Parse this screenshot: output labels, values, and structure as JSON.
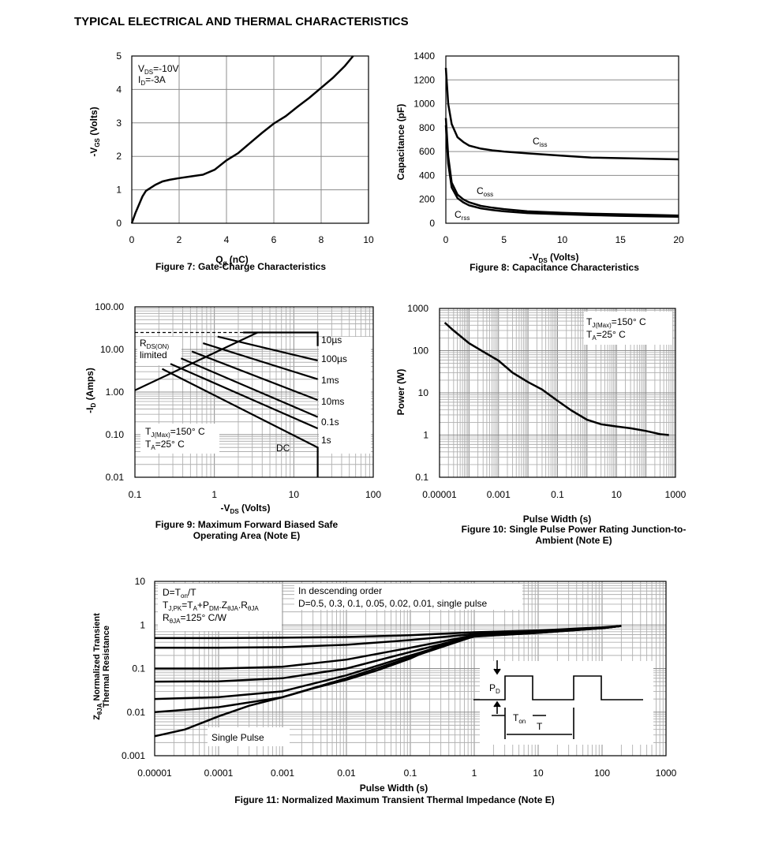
{
  "page": {
    "title": "TYPICAL ELECTRICAL AND THERMAL CHARACTERISTICS"
  },
  "chart_data": [
    {
      "id": "fig7",
      "type": "line",
      "title": "Figure 7: Gate-Charge Characteristics",
      "xlabel": "Q_g (nC)",
      "ylabel": "-V_GS (Volts)",
      "xlim": [
        0,
        10
      ],
      "ylim": [
        0,
        5
      ],
      "xticks": [
        0,
        2,
        4,
        6,
        8,
        10
      ],
      "yticks": [
        0,
        1,
        2,
        3,
        4,
        5
      ],
      "grid": true,
      "annotations": [
        "V_DS=-10V",
        "I_D=-3A"
      ],
      "series": [
        {
          "x": [
            0,
            0.15,
            0.3,
            0.45,
            0.6,
            0.8,
            1.0,
            1.3,
            1.6,
            2.0,
            2.5,
            3.0,
            3.5,
            4.0,
            4.5,
            5.0,
            5.5,
            6.0,
            6.5,
            7.0,
            7.5,
            8.0,
            8.5,
            9.0,
            9.35
          ],
          "y": [
            0,
            0.3,
            0.55,
            0.8,
            0.97,
            1.06,
            1.15,
            1.25,
            1.3,
            1.35,
            1.4,
            1.45,
            1.6,
            1.88,
            2.1,
            2.4,
            2.7,
            2.98,
            3.2,
            3.48,
            3.75,
            4.05,
            4.35,
            4.7,
            5.0
          ]
        }
      ]
    },
    {
      "id": "fig8",
      "type": "line",
      "title": "Figure 8: Capacitance Characteristics",
      "xlabel": "-V_DS (Volts)",
      "ylabel": "Capacitance (pF)",
      "xlim": [
        0,
        20
      ],
      "ylim": [
        0,
        1400
      ],
      "xticks": [
        0,
        5,
        10,
        15,
        20
      ],
      "yticks": [
        0,
        200,
        400,
        600,
        800,
        1000,
        1200,
        1400
      ],
      "grid": true,
      "series": [
        {
          "name": "C_iss",
          "x": [
            0,
            0.2,
            0.5,
            1,
            1.5,
            2,
            3,
            4,
            5,
            7,
            10,
            12.5,
            15,
            17.5,
            20
          ],
          "y": [
            1300,
            1000,
            830,
            720,
            680,
            650,
            625,
            610,
            600,
            585,
            565,
            550,
            545,
            540,
            535
          ]
        },
        {
          "name": "C_oss",
          "x": [
            0,
            0.2,
            0.5,
            1,
            1.5,
            2,
            3,
            4,
            5,
            7,
            10,
            12.5,
            15,
            17.5,
            20
          ],
          "y": [
            880,
            560,
            340,
            240,
            200,
            175,
            145,
            130,
            118,
            100,
            88,
            80,
            75,
            70,
            65
          ]
        },
        {
          "name": "C_rss",
          "x": [
            0,
            0.2,
            0.5,
            1,
            1.5,
            2,
            3,
            4,
            5,
            7,
            10,
            12.5,
            15,
            17.5,
            20
          ],
          "y": [
            820,
            500,
            300,
            210,
            175,
            150,
            125,
            110,
            100,
            85,
            75,
            68,
            62,
            58,
            55
          ]
        }
      ]
    },
    {
      "id": "fig9",
      "type": "line",
      "title": "Figure 9: Maximum Forward Biased Safe Operating Area (Note E)",
      "xlabel": "-V_DS (Volts)",
      "ylabel": "-I_D (Amps)",
      "xscale": "log",
      "yscale": "log",
      "xlim": [
        0.1,
        100
      ],
      "ylim": [
        0.01,
        100
      ],
      "xtick_labels": [
        "0.1",
        "1",
        "10",
        "100"
      ],
      "ytick_labels": [
        "0.01",
        "0.10",
        "1.00",
        "10.00",
        "100.00"
      ],
      "grid": true,
      "annotations": [
        "R_DS(ON) limited",
        "T_J(Max)=150° C",
        "T_A=25° C",
        "DC"
      ],
      "series": [
        {
          "name": "R_DS(ON) limited",
          "x": [
            0.1,
            3.5
          ],
          "y": [
            1.1,
            25
          ]
        },
        {
          "name": "10µs",
          "x": [
            2.3,
            20,
            20
          ],
          "y": [
            25,
            25,
            12
          ]
        },
        {
          "name": "100µs",
          "x": [
            1.1,
            20
          ],
          "y": [
            20,
            5.5
          ]
        },
        {
          "name": "1ms",
          "x": [
            0.72,
            20
          ],
          "y": [
            14,
            2
          ]
        },
        {
          "name": "10ms",
          "x": [
            0.52,
            20
          ],
          "y": [
            9,
            0.65
          ]
        },
        {
          "name": "0.1s",
          "x": [
            0.38,
            20
          ],
          "y": [
            6.2,
            0.26
          ]
        },
        {
          "name": "1s",
          "x": [
            0.28,
            20
          ],
          "y": [
            4.6,
            0.14
          ]
        },
        {
          "name": "DC",
          "x": [
            0.22,
            20,
            20
          ],
          "y": [
            3.5,
            0.05,
            0.01
          ]
        }
      ]
    },
    {
      "id": "fig10",
      "type": "line",
      "title": "Figure 10: Single Pulse Power Rating Junction-to-Ambient (Note E)",
      "xlabel": "Pulse Width (s)",
      "ylabel": "Power (W)",
      "xscale": "log",
      "yscale": "log",
      "xlim": [
        1e-05,
        1000
      ],
      "ylim": [
        0.1,
        1000
      ],
      "xtick_labels": [
        "0.00001",
        "0.001",
        "0.1",
        "10",
        "1000"
      ],
      "ytick_labels": [
        "0.1",
        "1",
        "10",
        "100",
        "1000"
      ],
      "grid": true,
      "annotations": [
        "T_J(Max)=150° C",
        "T_A=25° C"
      ],
      "series": [
        {
          "x": [
            1.5e-05,
            3e-05,
            0.0001,
            0.0003,
            0.001,
            0.003,
            0.01,
            0.03,
            0.1,
            0.3,
            1,
            3,
            10,
            30,
            100,
            300,
            600
          ],
          "y": [
            460,
            300,
            150,
            95,
            58,
            30,
            18,
            12,
            6.5,
            3.8,
            2.3,
            1.8,
            1.6,
            1.45,
            1.25,
            1.05,
            1.0
          ]
        }
      ]
    },
    {
      "id": "fig11",
      "type": "line",
      "title": "Figure 11: Normalized Maximum Transient Thermal Impedance (Note E)",
      "xlabel": "Pulse Width (s)",
      "ylabel": "Z_θJA Normalized Transient Thermal Resistance",
      "xscale": "log",
      "yscale": "log",
      "xlim": [
        1e-05,
        1000
      ],
      "ylim": [
        0.001,
        10
      ],
      "xtick_labels": [
        "0.00001",
        "0.0001",
        "0.001",
        "0.01",
        "0.1",
        "1",
        "10",
        "100",
        "1000"
      ],
      "ytick_labels": [
        "0.001",
        "0.01",
        "0.1",
        "1",
        "10"
      ],
      "grid": true,
      "annotations": [
        "D=T_on/T",
        "T_J,PK=T_A+P_DM.Z_θJA.R_θJA",
        "R_θJA=125° C/W",
        "In descending order",
        "D=0.5, 0.3, 0.1, 0.05, 0.02, 0.01, single pulse",
        "Single Pulse",
        "P_D",
        "T_on",
        "T"
      ],
      "series": [
        {
          "name": "D=0.5",
          "x": [
            1e-05,
            0.0001,
            0.001,
            0.01,
            0.1,
            1,
            10,
            100,
            200
          ],
          "y": [
            0.5,
            0.5,
            0.51,
            0.53,
            0.58,
            0.68,
            0.75,
            0.88,
            0.95
          ]
        },
        {
          "name": "D=0.3",
          "x": [
            1e-05,
            0.0001,
            0.001,
            0.01,
            0.1,
            1,
            10,
            100,
            200
          ],
          "y": [
            0.3,
            0.3,
            0.31,
            0.35,
            0.45,
            0.62,
            0.72,
            0.86,
            0.95
          ]
        },
        {
          "name": "D=0.1",
          "x": [
            1e-05,
            0.0001,
            0.001,
            0.01,
            0.1,
            1,
            10,
            100,
            200
          ],
          "y": [
            0.1,
            0.1,
            0.11,
            0.16,
            0.3,
            0.58,
            0.7,
            0.85,
            0.95
          ]
        },
        {
          "name": "D=0.05",
          "x": [
            1e-05,
            0.0001,
            0.001,
            0.01,
            0.1,
            1,
            10,
            100,
            200
          ],
          "y": [
            0.05,
            0.051,
            0.06,
            0.1,
            0.24,
            0.56,
            0.68,
            0.85,
            0.95
          ]
        },
        {
          "name": "D=0.02",
          "x": [
            1e-05,
            0.0001,
            0.001,
            0.01,
            0.1,
            1,
            10,
            100,
            200
          ],
          "y": [
            0.02,
            0.022,
            0.03,
            0.07,
            0.2,
            0.55,
            0.67,
            0.84,
            0.95
          ]
        },
        {
          "name": "D=0.01",
          "x": [
            1e-05,
            0.0001,
            0.001,
            0.01,
            0.1,
            1,
            10,
            100,
            200
          ],
          "y": [
            0.01,
            0.013,
            0.022,
            0.06,
            0.18,
            0.55,
            0.66,
            0.84,
            0.95
          ]
        },
        {
          "name": "single pulse",
          "x": [
            1e-05,
            3e-05,
            0.0001,
            0.0003,
            0.001,
            0.003,
            0.01,
            0.03,
            0.1,
            0.3,
            1,
            10,
            100,
            200
          ],
          "y": [
            0.0028,
            0.004,
            0.008,
            0.014,
            0.022,
            0.035,
            0.055,
            0.09,
            0.17,
            0.35,
            0.54,
            0.66,
            0.84,
            0.95
          ]
        }
      ]
    }
  ]
}
